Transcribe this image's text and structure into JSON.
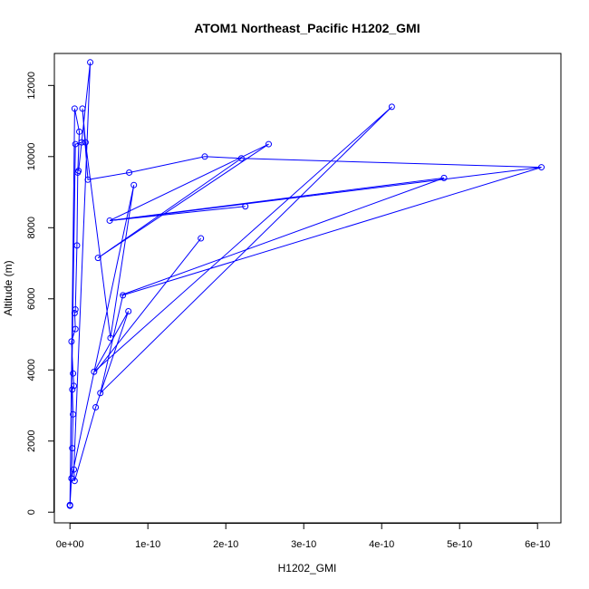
{
  "chart_data": {
    "type": "scatter",
    "title": "ATOM1 Northeast_Pacific H1202_GMI",
    "xlabel": "H1202_GMI",
    "ylabel": "Altitude (m)",
    "xlim": [
      -2e-11,
      6.3e-10
    ],
    "ylim": [
      -300,
      12900
    ],
    "x_ticks": [
      0,
      1e-10,
      2e-10,
      3e-10,
      4e-10,
      5e-10,
      6e-10
    ],
    "x_tick_labels": [
      "0e+00",
      "1e-10",
      "2e-10",
      "3e-10",
      "4e-10",
      "5e-10",
      "6e-10"
    ],
    "y_ticks": [
      0,
      2000,
      4000,
      6000,
      8000,
      10000,
      12000
    ],
    "y_tick_labels": [
      "0",
      "2000",
      "4000",
      "6000",
      "8000",
      "10000",
      "12000"
    ],
    "grid": false,
    "legend": "none",
    "series_color": "#0000ff",
    "markers": "open-circle",
    "connected": true,
    "points": [
      {
        "x": 0.0,
        "y": 200
      },
      {
        "x": 2e-12,
        "y": 950
      },
      {
        "x": 3e-12,
        "y": 1800
      },
      {
        "x": 4e-12,
        "y": 2750
      },
      {
        "x": 3e-12,
        "y": 3450
      },
      {
        "x": 5e-12,
        "y": 3550
      },
      {
        "x": 4e-12,
        "y": 3900
      },
      {
        "x": 2e-12,
        "y": 4800
      },
      {
        "x": 7e-12,
        "y": 5150
      },
      {
        "x": 6e-12,
        "y": 5600
      },
      {
        "x": 7e-12,
        "y": 5700
      },
      {
        "x": 9e-12,
        "y": 7500
      },
      {
        "x": 1e-11,
        "y": 9550
      },
      {
        "x": 1.2e-11,
        "y": 10700
      },
      {
        "x": 6e-12,
        "y": 11350
      },
      {
        "x": 0.0,
        "y": 180
      },
      {
        "x": 7e-12,
        "y": 10350
      },
      {
        "x": 1.5e-11,
        "y": 10400
      },
      {
        "x": 1.1e-11,
        "y": 9600
      },
      {
        "x": 2.6e-11,
        "y": 12650
      },
      {
        "x": 5e-12,
        "y": 1200
      },
      {
        "x": 6e-12,
        "y": 880
      },
      {
        "x": 3.3e-11,
        "y": 2950
      },
      {
        "x": 7.5e-11,
        "y": 5650
      },
      {
        "x": 3.1e-11,
        "y": 3950
      },
      {
        "x": 4.13e-10,
        "y": 11400
      },
      {
        "x": 3.9e-11,
        "y": 3350
      },
      {
        "x": 6.8e-11,
        "y": 6100
      },
      {
        "x": 6.05e-10,
        "y": 9700
      },
      {
        "x": 2.2e-10,
        "y": 9950
      },
      {
        "x": 1.73e-10,
        "y": 10000
      },
      {
        "x": 7.6e-11,
        "y": 9550
      },
      {
        "x": 2.3e-11,
        "y": 9350
      },
      {
        "x": 1.6e-11,
        "y": 11350
      },
      {
        "x": 2e-11,
        "y": 10400
      },
      {
        "x": 5.2e-11,
        "y": 4900
      },
      {
        "x": 8.2e-11,
        "y": 9200
      },
      {
        "x": 2e-12,
        "y": 950
      },
      {
        "x": 0.0,
        "y": 200
      }
    ],
    "extra_points": [
      {
        "x": 5.1e-11,
        "y": 8200
      },
      {
        "x": 2.25e-10,
        "y": 8600
      },
      {
        "x": 4.8e-10,
        "y": 9400
      },
      {
        "x": 3.6e-11,
        "y": 7150
      },
      {
        "x": 2.55e-10,
        "y": 10350
      },
      {
        "x": 1.68e-10,
        "y": 7700
      }
    ],
    "extra_segments": [
      [
        {
          "x": 5.1e-11,
          "y": 8200
        },
        {
          "x": 2.25e-10,
          "y": 8600
        }
      ],
      [
        {
          "x": 5.1e-11,
          "y": 8200
        },
        {
          "x": 4.8e-10,
          "y": 9400
        }
      ],
      [
        {
          "x": 4.8e-10,
          "y": 9400
        },
        {
          "x": 6.5e-11,
          "y": 6100
        }
      ],
      [
        {
          "x": 3.6e-11,
          "y": 7150
        },
        {
          "x": 2.55e-10,
          "y": 10350
        }
      ],
      [
        {
          "x": 3.6e-11,
          "y": 7150
        },
        {
          "x": 2.2e-10,
          "y": 9950
        }
      ],
      [
        {
          "x": 1.68e-10,
          "y": 7700
        },
        {
          "x": 3.3e-11,
          "y": 3950
        }
      ],
      [
        {
          "x": 6.05e-10,
          "y": 9700
        },
        {
          "x": 5.2e-11,
          "y": 8200
        }
      ],
      [
        {
          "x": 2.55e-10,
          "y": 10350
        },
        {
          "x": 5.1e-11,
          "y": 8200
        }
      ]
    ]
  }
}
